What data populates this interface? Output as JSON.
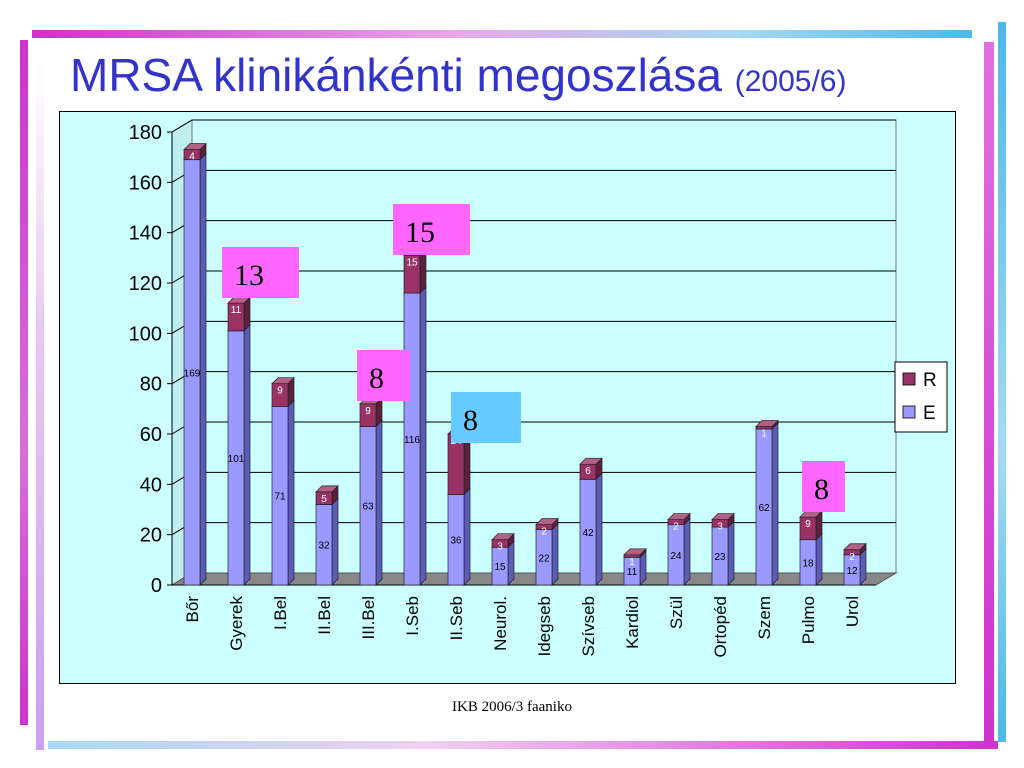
{
  "slide": {
    "title": "MRSA klinikánkénti megoszlása",
    "subtitle": "(2005/6)",
    "footer": "IKB 2006/3 faaniko"
  },
  "colors": {
    "E": "#9999ff",
    "R": "#993366",
    "title": "#3333cc",
    "plot_bg": "#ccffff"
  },
  "chart_data": {
    "type": "bar",
    "stacked": true,
    "three_d": true,
    "categories": [
      "Bőr",
      "Gyerek",
      "I.Bel",
      "II.Bel",
      "III.Bel",
      "I.Seb",
      "II.Seb",
      "Neurol.",
      "Idegseb",
      "Szívseb",
      "Kardiol",
      "Szül",
      "Ortopéd",
      "Szem",
      "Pulmo",
      "Urol"
    ],
    "series": [
      {
        "name": "E",
        "values": [
          169,
          101,
          71,
          32,
          63,
          116,
          36,
          15,
          22,
          42,
          11,
          24,
          23,
          62,
          18,
          12
        ]
      },
      {
        "name": "R",
        "values": [
          4,
          11,
          9,
          5,
          9,
          15,
          24,
          3,
          2,
          6,
          1,
          2,
          3,
          1,
          9,
          2
        ]
      }
    ],
    "ylim": [
      0,
      180
    ],
    "yticks": [
      "0",
      "20",
      "40",
      "60",
      "80",
      "100",
      "120",
      "140",
      "160",
      "180"
    ],
    "grid": true,
    "legend_position": "right",
    "callouts": [
      {
        "text": "13",
        "category": "Gyerek",
        "color": "#ff66ff"
      },
      {
        "text": "15",
        "category": "I.Seb",
        "color": "#ff66ff"
      },
      {
        "text": "8",
        "category": "III.Bel",
        "color": "#ff66ff"
      },
      {
        "text": "8",
        "category": "II.Seb",
        "color": "#66ccff"
      },
      {
        "text": "8",
        "category": "Pulmo",
        "color": "#ff66ff"
      }
    ]
  }
}
